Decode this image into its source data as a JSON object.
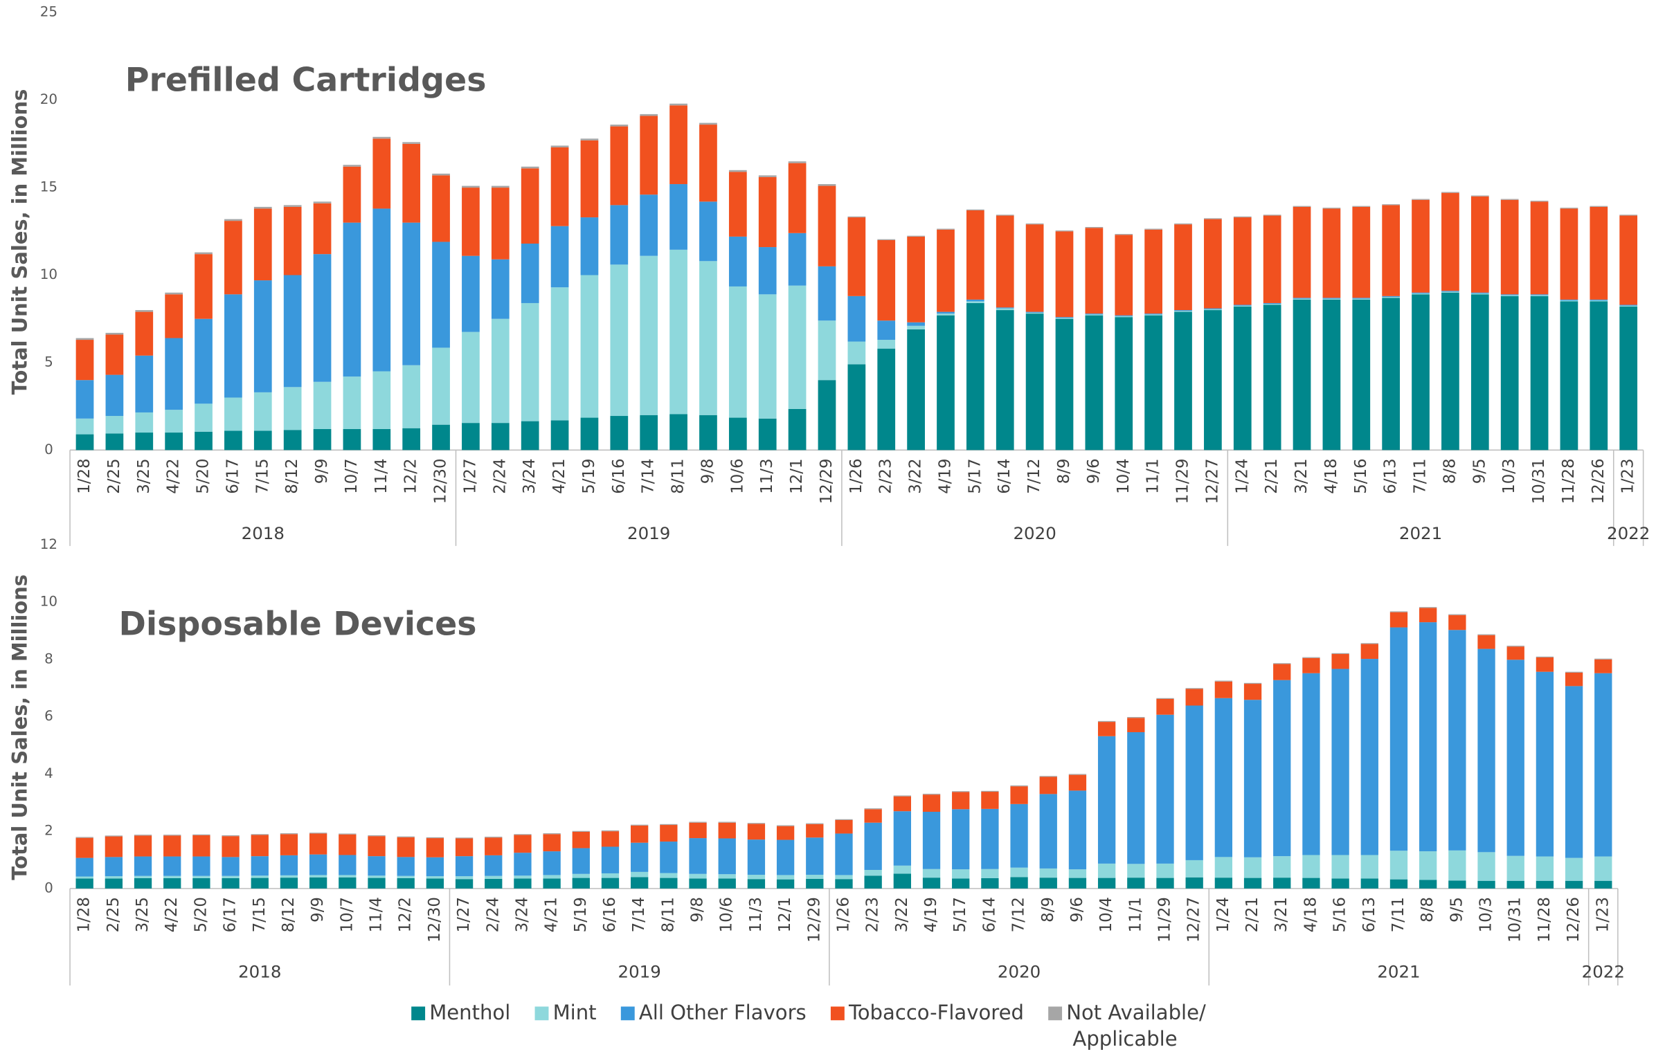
{
  "chart_data": [
    {
      "type": "bar",
      "stacked": true,
      "title": "Prefilled Cartridges",
      "y_label": "Total Unit Sales, in Millions",
      "groups": [
        {
          "label": "2018",
          "categories": [
            "1/28",
            "2/25",
            "3/25",
            "4/22",
            "5/20",
            "6/17",
            "7/15",
            "8/12",
            "9/9",
            "10/7",
            "11/4",
            "12/2",
            "12/30"
          ]
        },
        {
          "label": "2019",
          "categories": [
            "1/27",
            "2/24",
            "3/24",
            "4/21",
            "5/19",
            "6/16",
            "7/14",
            "8/11",
            "9/8",
            "10/6",
            "11/3",
            "12/1",
            "12/29"
          ]
        },
        {
          "label": "2020",
          "categories": [
            "1/26",
            "2/23",
            "3/22",
            "4/19",
            "5/17",
            "6/14",
            "7/12",
            "8/9",
            "9/6",
            "10/4",
            "11/1",
            "11/29",
            "12/27"
          ]
        },
        {
          "label": "2021",
          "categories": [
            "1/24",
            "2/21",
            "3/21",
            "4/18",
            "5/16",
            "6/13",
            "7/11",
            "8/8",
            "9/5",
            "10/3",
            "10/31",
            "11/28",
            "12/26"
          ]
        },
        {
          "label": "2022",
          "categories": [
            "1/23"
          ]
        }
      ],
      "series": [
        {
          "name": "Menthol",
          "color": "#00878c",
          "values": [
            0.9,
            0.95,
            1.0,
            1.0,
            1.05,
            1.1,
            1.1,
            1.15,
            1.2,
            1.2,
            1.2,
            1.25,
            1.45,
            1.55,
            1.55,
            1.65,
            1.7,
            1.85,
            1.95,
            2.0,
            2.05,
            2.0,
            1.85,
            1.8,
            2.35,
            4.0,
            4.9,
            5.8,
            6.9,
            7.7,
            8.4,
            8.0,
            7.8,
            7.5,
            7.7,
            7.6,
            7.7,
            7.9,
            8.0,
            8.2,
            8.3,
            8.6,
            8.6,
            8.6,
            8.7,
            8.9,
            9.0,
            8.9,
            8.8,
            8.8,
            8.5,
            8.5,
            8.2
          ]
        },
        {
          "name": "Mint",
          "color": "#8ed8dc",
          "values": [
            0.9,
            1.0,
            1.15,
            1.3,
            1.6,
            1.9,
            2.2,
            2.45,
            2.7,
            3.0,
            3.3,
            3.6,
            4.4,
            5.2,
            5.95,
            6.75,
            7.6,
            8.15,
            8.65,
            9.1,
            9.4,
            8.8,
            7.5,
            7.1,
            7.05,
            3.4,
            1.3,
            0.5,
            0.2,
            0.1,
            0.1,
            0.1,
            0.05,
            0.05,
            0.05,
            0.05,
            0.05,
            0.05,
            0.05,
            0.05,
            0.05,
            0.05,
            0.05,
            0.05,
            0.05,
            0.05,
            0.05,
            0.05,
            0.05,
            0.05,
            0.05,
            0.05,
            0.05
          ]
        },
        {
          "name": "All Other Flavors",
          "color": "#3a98dc",
          "values": [
            2.2,
            2.35,
            3.25,
            4.1,
            4.85,
            5.9,
            6.4,
            6.4,
            7.3,
            8.8,
            9.3,
            8.15,
            6.05,
            4.35,
            3.4,
            3.4,
            3.5,
            3.3,
            3.4,
            3.5,
            3.75,
            3.4,
            2.85,
            2.7,
            3.0,
            3.1,
            2.6,
            1.1,
            0.2,
            0.1,
            0.1,
            0.05,
            0.05,
            0.05,
            0.05,
            0.05,
            0.05,
            0.05,
            0.05,
            0.05,
            0.05,
            0.05,
            0.05,
            0.05,
            0.05,
            0.05,
            0.05,
            0.05,
            0.05,
            0.05,
            0.05,
            0.05,
            0.05
          ]
        },
        {
          "name": "Tobacco-Flavored",
          "color": "#f1511f",
          "values": [
            2.3,
            2.3,
            2.5,
            2.5,
            3.7,
            4.2,
            4.1,
            3.9,
            2.9,
            3.2,
            4.0,
            4.5,
            3.8,
            3.9,
            4.1,
            4.3,
            4.5,
            4.4,
            4.5,
            4.5,
            4.5,
            4.4,
            3.7,
            4.0,
            4.0,
            4.6,
            4.5,
            4.6,
            4.9,
            4.7,
            5.1,
            5.25,
            5.0,
            4.9,
            4.9,
            4.6,
            4.8,
            4.9,
            5.1,
            5.0,
            5.0,
            5.2,
            5.1,
            5.2,
            5.2,
            5.3,
            5.6,
            5.5,
            5.4,
            5.3,
            5.2,
            5.3,
            5.1
          ]
        },
        {
          "name": "Not Available/ Applicable",
          "color": "#a6a6a6",
          "values": [
            0.1,
            0.1,
            0.1,
            0.1,
            0.1,
            0.1,
            0.1,
            0.1,
            0.1,
            0.1,
            0.1,
            0.1,
            0.1,
            0.1,
            0.1,
            0.1,
            0.1,
            0.1,
            0.1,
            0.1,
            0.1,
            0.1,
            0.1,
            0.1,
            0.1,
            0.1,
            0.05,
            0.05,
            0.05,
            0.05,
            0.05,
            0.05,
            0.05,
            0.05,
            0.05,
            0.05,
            0.05,
            0.05,
            0.05,
            0.05,
            0.05,
            0.05,
            0.05,
            0.05,
            0.05,
            0.05,
            0.05,
            0.05,
            0.05,
            0.05,
            0.05,
            0.05,
            0.05
          ]
        }
      ],
      "ylim": [
        0,
        25
      ],
      "yticks": [
        0,
        5,
        10,
        15,
        20,
        25
      ]
    },
    {
      "type": "bar",
      "stacked": true,
      "title": "Disposable Devices",
      "y_label": "Total Unit Sales, in Millions",
      "groups": [
        {
          "label": "2018",
          "categories": [
            "1/28",
            "2/25",
            "3/25",
            "4/22",
            "5/20",
            "6/17",
            "7/15",
            "8/12",
            "9/9",
            "10/7",
            "11/4",
            "12/2",
            "12/30"
          ]
        },
        {
          "label": "2019",
          "categories": [
            "1/27",
            "2/24",
            "3/24",
            "4/21",
            "5/19",
            "6/16",
            "7/14",
            "8/11",
            "9/8",
            "10/6",
            "11/3",
            "12/1",
            "12/29"
          ]
        },
        {
          "label": "2020",
          "categories": [
            "1/26",
            "2/23",
            "3/22",
            "4/19",
            "5/17",
            "6/14",
            "7/12",
            "8/9",
            "9/6",
            "10/4",
            "11/1",
            "11/29",
            "12/27"
          ]
        },
        {
          "label": "2021",
          "categories": [
            "1/24",
            "2/21",
            "3/21",
            "4/18",
            "5/16",
            "6/13",
            "7/11",
            "8/8",
            "9/5",
            "10/3",
            "10/31",
            "11/28",
            "12/26"
          ]
        },
        {
          "label": "2022",
          "categories": [
            "1/23"
          ]
        }
      ],
      "series": [
        {
          "name": "Menthol",
          "color": "#00878c",
          "values": [
            0.35,
            0.35,
            0.36,
            0.36,
            0.36,
            0.36,
            0.37,
            0.38,
            0.39,
            0.39,
            0.37,
            0.36,
            0.35,
            0.33,
            0.34,
            0.35,
            0.35,
            0.37,
            0.37,
            0.4,
            0.37,
            0.35,
            0.35,
            0.33,
            0.32,
            0.34,
            0.33,
            0.45,
            0.52,
            0.38,
            0.35,
            0.36,
            0.4,
            0.38,
            0.37,
            0.37,
            0.38,
            0.37,
            0.39,
            0.38,
            0.37,
            0.38,
            0.37,
            0.35,
            0.35,
            0.32,
            0.3,
            0.28,
            0.27,
            0.27,
            0.27,
            0.27,
            0.27
          ]
        },
        {
          "name": "Mint",
          "color": "#8ed8dc",
          "values": [
            0.07,
            0.08,
            0.08,
            0.08,
            0.08,
            0.08,
            0.08,
            0.08,
            0.08,
            0.08,
            0.08,
            0.08,
            0.08,
            0.1,
            0.1,
            0.1,
            0.12,
            0.14,
            0.16,
            0.18,
            0.17,
            0.16,
            0.15,
            0.15,
            0.15,
            0.14,
            0.14,
            0.2,
            0.28,
            0.3,
            0.32,
            0.32,
            0.33,
            0.32,
            0.3,
            0.5,
            0.48,
            0.5,
            0.6,
            0.72,
            0.72,
            0.75,
            0.8,
            0.82,
            0.82,
            1.0,
            1.0,
            1.05,
            1.0,
            0.87,
            0.85,
            0.8,
            0.85
          ]
        },
        {
          "name": "All Other Flavors",
          "color": "#3a98dc",
          "values": [
            0.65,
            0.67,
            0.68,
            0.68,
            0.68,
            0.66,
            0.68,
            0.7,
            0.72,
            0.7,
            0.68,
            0.66,
            0.66,
            0.7,
            0.72,
            0.8,
            0.83,
            0.9,
            0.93,
            1.02,
            1.1,
            1.25,
            1.25,
            1.23,
            1.23,
            1.3,
            1.45,
            1.65,
            1.9,
            2.0,
            2.1,
            2.1,
            2.22,
            2.6,
            2.75,
            4.45,
            4.6,
            5.2,
            5.4,
            5.55,
            5.5,
            6.15,
            6.35,
            6.5,
            6.85,
            7.8,
            8.0,
            7.7,
            7.1,
            6.85,
            6.45,
            6.0,
            6.4
          ]
        },
        {
          "name": "Tobacco-Flavored",
          "color": "#f1511f",
          "values": [
            0.7,
            0.72,
            0.73,
            0.73,
            0.74,
            0.73,
            0.74,
            0.74,
            0.73,
            0.72,
            0.7,
            0.69,
            0.67,
            0.62,
            0.62,
            0.62,
            0.6,
            0.57,
            0.54,
            0.6,
            0.58,
            0.54,
            0.55,
            0.55,
            0.48,
            0.47,
            0.47,
            0.47,
            0.52,
            0.6,
            0.6,
            0.6,
            0.62,
            0.6,
            0.55,
            0.5,
            0.5,
            0.55,
            0.58,
            0.58,
            0.56,
            0.56,
            0.53,
            0.52,
            0.52,
            0.53,
            0.5,
            0.52,
            0.48,
            0.46,
            0.5,
            0.47,
            0.48
          ]
        },
        {
          "name": "Not Available/ Applicable",
          "color": "#a6a6a6",
          "values": [
            0.03,
            0.03,
            0.03,
            0.03,
            0.03,
            0.03,
            0.03,
            0.03,
            0.03,
            0.03,
            0.03,
            0.03,
            0.03,
            0.03,
            0.03,
            0.03,
            0.03,
            0.03,
            0.03,
            0.03,
            0.03,
            0.03,
            0.03,
            0.03,
            0.03,
            0.03,
            0.03,
            0.03,
            0.03,
            0.03,
            0.03,
            0.03,
            0.03,
            0.03,
            0.03,
            0.03,
            0.03,
            0.03,
            0.03,
            0.03,
            0.03,
            0.03,
            0.03,
            0.03,
            0.03,
            0.03,
            0.03,
            0.03,
            0.03,
            0.03,
            0.03,
            0.03,
            0.03
          ]
        }
      ],
      "ylim": [
        0,
        12
      ],
      "yticks": [
        0,
        2,
        4,
        6,
        8,
        10,
        12
      ],
      "legend": "bottom"
    }
  ]
}
